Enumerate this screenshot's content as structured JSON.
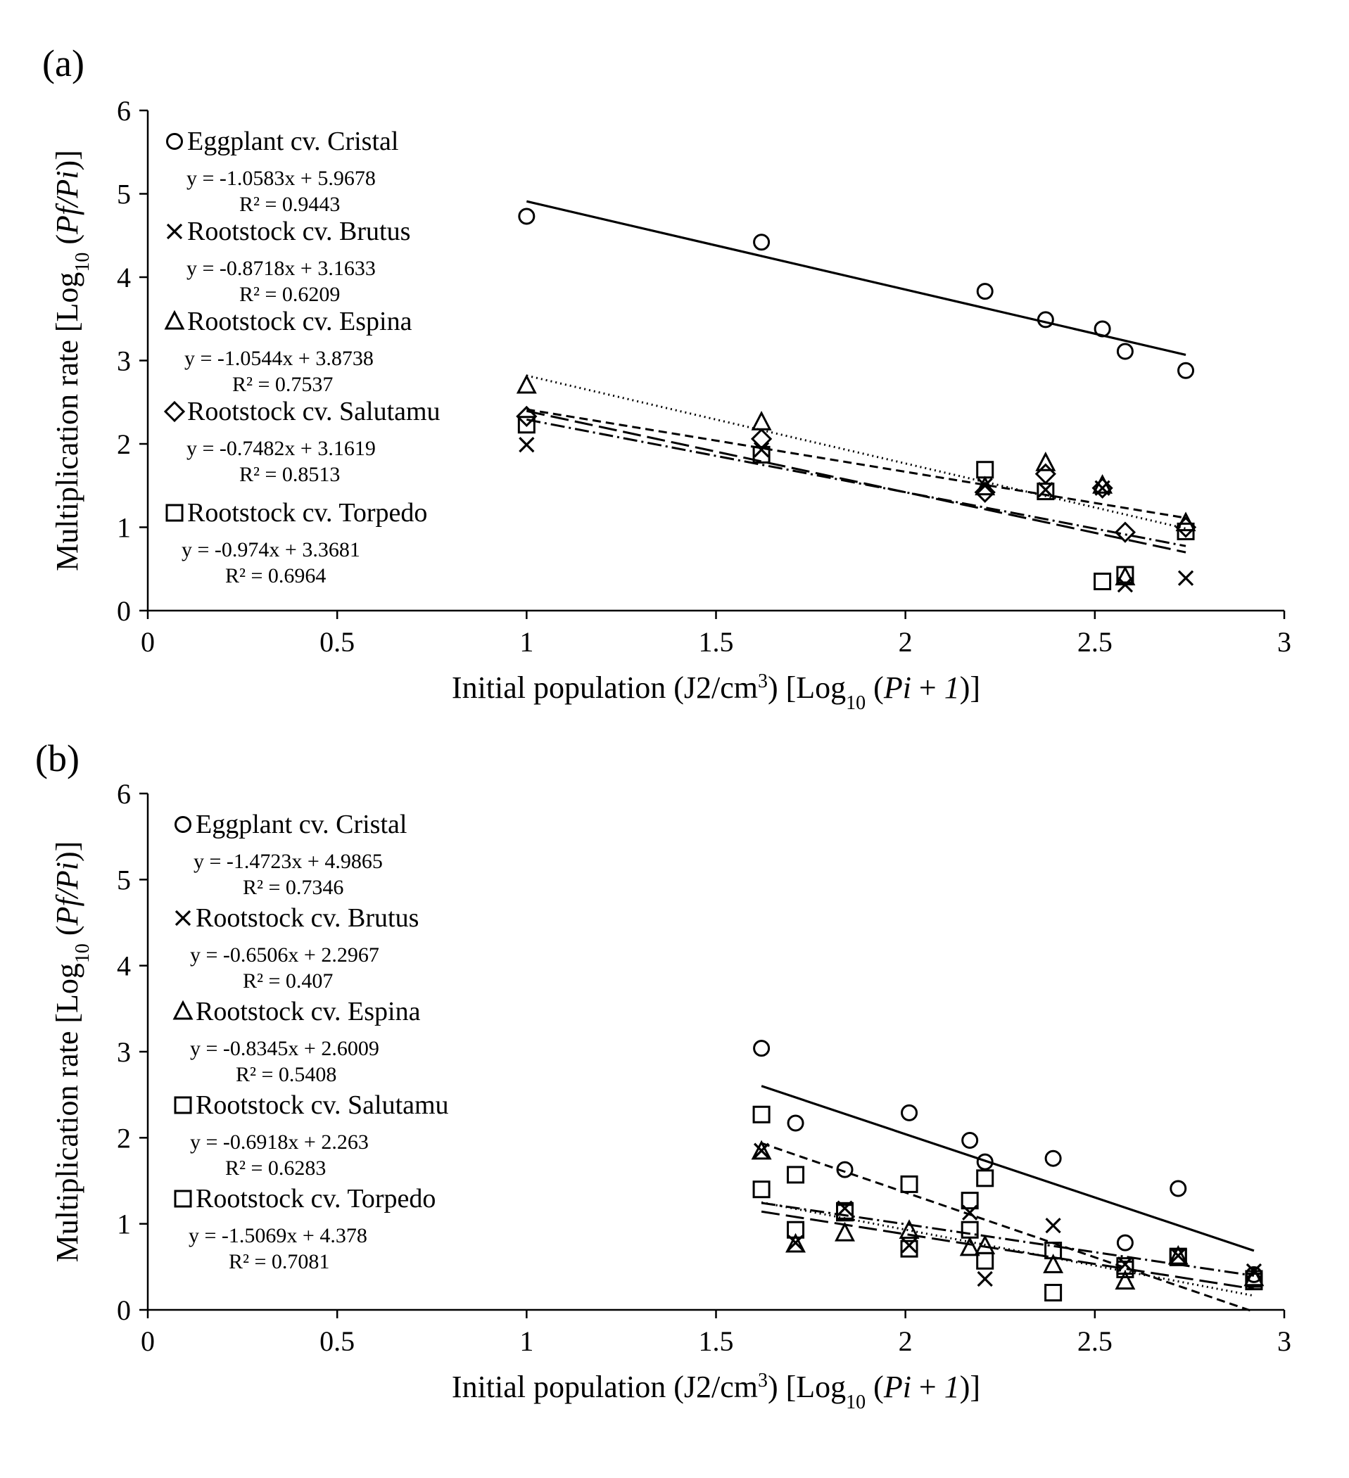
{
  "chart_data": [
    {
      "panel_label": "(a)",
      "type": "scatter",
      "xlabel": "Initial population (J2/cm³) [Log₁₀ (Pi + 1)]",
      "ylabel": "Multiplication rate [Log₁₀ (Pf/Pi)]",
      "xlim": [
        0,
        3
      ],
      "ylim": [
        0,
        6
      ],
      "x_ticks": [
        "0",
        "0.5",
        "1",
        "1.5",
        "2",
        "2.5",
        "3"
      ],
      "y_ticks": [
        "0",
        "1",
        "2",
        "3",
        "4",
        "5",
        "6"
      ],
      "grid": false,
      "legend_position": "top-left",
      "series": [
        {
          "name": "Eggplant cv. Cristal",
          "marker": "circle",
          "line_style": "solid",
          "equation": "y = -1.0583x + 5.9678",
          "r2": "R² = 0.9443",
          "slope": -1.0583,
          "intercept": 5.9678,
          "fit_range": [
            1.0,
            2.74
          ],
          "points": [
            [
              1.0,
              4.73
            ],
            [
              1.62,
              4.42
            ],
            [
              2.21,
              3.83
            ],
            [
              2.37,
              3.49
            ],
            [
              2.52,
              3.38
            ],
            [
              2.58,
              3.11
            ],
            [
              2.74,
              2.88
            ]
          ]
        },
        {
          "name": "Rootstock cv. Brutus",
          "marker": "x",
          "line_style": "dash-dot",
          "equation": "y = -0.8718x + 3.1633",
          "r2": "R² = 0.6209",
          "slope": -0.8718,
          "intercept": 3.1633,
          "fit_range": [
            1.0,
            2.74
          ],
          "points": [
            [
              1.0,
              1.99
            ],
            [
              1.62,
              1.93
            ],
            [
              2.21,
              1.5
            ],
            [
              2.37,
              1.45
            ],
            [
              2.52,
              1.47
            ],
            [
              2.58,
              0.31
            ],
            [
              2.74,
              0.39
            ]
          ]
        },
        {
          "name": "Rootstock cv. Espina",
          "marker": "triangle",
          "line_style": "dotted",
          "equation": "y = -1.0544x + 3.8738",
          "r2": "R² = 0.7537",
          "slope": -1.0544,
          "intercept": 3.8738,
          "fit_range": [
            1.0,
            2.74
          ],
          "points": [
            [
              1.0,
              2.7
            ],
            [
              1.62,
              2.26
            ],
            [
              2.21,
              1.48
            ],
            [
              2.37,
              1.77
            ],
            [
              2.52,
              1.5
            ],
            [
              2.58,
              0.4
            ],
            [
              2.74,
              1.05
            ]
          ]
        },
        {
          "name": "Rootstock cv. Salutamu",
          "marker": "diamond",
          "line_style": "dashed",
          "equation": "y = -0.7482x + 3.1619",
          "r2": "R² = 0.8513",
          "slope": -0.7482,
          "intercept": 3.1619,
          "fit_range": [
            1.0,
            2.74
          ],
          "points": [
            [
              1.0,
              2.33
            ],
            [
              1.62,
              2.06
            ],
            [
              2.21,
              1.42
            ],
            [
              2.37,
              1.64
            ],
            [
              2.52,
              1.47
            ],
            [
              2.58,
              0.94
            ],
            [
              2.74,
              1.0
            ]
          ]
        },
        {
          "name": "Rootstock cv. Torpedo",
          "marker": "square",
          "line_style": "long-dash",
          "equation": "y = -0.974x + 3.3681",
          "r2": "R² = 0.6964",
          "slope": -0.974,
          "intercept": 3.3681,
          "fit_range": [
            1.0,
            2.74
          ],
          "points": [
            [
              1.0,
              2.23
            ],
            [
              1.62,
              1.87
            ],
            [
              2.21,
              1.69
            ],
            [
              2.37,
              1.43
            ],
            [
              2.52,
              0.35
            ],
            [
              2.58,
              0.43
            ],
            [
              2.74,
              0.95
            ]
          ]
        }
      ]
    },
    {
      "panel_label": "(b)",
      "type": "scatter",
      "xlabel": "Initial population (J2/cm³) [Log₁₀ (Pi + 1)]",
      "ylabel": "Multiplication rate [Log₁₀ (Pf/Pi)]",
      "xlim": [
        0,
        3
      ],
      "ylim": [
        0,
        6
      ],
      "x_ticks": [
        "0",
        "0.5",
        "1",
        "1.5",
        "2",
        "2.5",
        "3"
      ],
      "y_ticks": [
        "0",
        "1",
        "2",
        "3",
        "4",
        "5",
        "6"
      ],
      "grid": false,
      "legend_position": "top-left",
      "series": [
        {
          "name": "Eggplant cv. Cristal",
          "marker": "circle",
          "line_style": "solid",
          "equation": "y = -1.4723x + 4.9865",
          "r2": "R² = 0.7346",
          "slope": -1.4723,
          "intercept": 4.9865,
          "fit_range": [
            1.62,
            2.92
          ],
          "points": [
            [
              1.62,
              3.04
            ],
            [
              1.71,
              2.17
            ],
            [
              1.84,
              1.63
            ],
            [
              2.01,
              2.29
            ],
            [
              2.17,
              1.97
            ],
            [
              2.21,
              1.72
            ],
            [
              2.39,
              1.76
            ],
            [
              2.58,
              0.78
            ],
            [
              2.72,
              1.41
            ],
            [
              2.92,
              0.41
            ]
          ]
        },
        {
          "name": "Rootstock cv. Brutus",
          "marker": "x",
          "line_style": "dash-dot",
          "equation": "y = -0.6506x + 2.2967",
          "r2": "R² = 0.407",
          "slope": -0.6506,
          "intercept": 2.2967,
          "fit_range": [
            1.62,
            2.92
          ],
          "points": [
            [
              1.62,
              1.85
            ],
            [
              1.71,
              0.78
            ],
            [
              1.84,
              1.18
            ],
            [
              2.01,
              0.75
            ],
            [
              2.17,
              1.13
            ],
            [
              2.21,
              0.36
            ],
            [
              2.39,
              0.98
            ],
            [
              2.58,
              0.53
            ],
            [
              2.72,
              0.63
            ],
            [
              2.92,
              0.45
            ]
          ]
        },
        {
          "name": "Rootstock cv. Espina",
          "marker": "triangle",
          "line_style": "dotted",
          "equation": "y = -0.8345x + 2.6009",
          "r2": "R² = 0.5408",
          "slope": -0.8345,
          "intercept": 2.6009,
          "fit_range": [
            1.62,
            2.92
          ],
          "points": [
            [
              1.62,
              1.84
            ],
            [
              1.71,
              0.76
            ],
            [
              1.84,
              0.89
            ],
            [
              2.01,
              0.92
            ],
            [
              2.17,
              0.72
            ],
            [
              2.21,
              0.74
            ],
            [
              2.39,
              0.52
            ],
            [
              2.58,
              0.33
            ],
            [
              2.72,
              0.62
            ],
            [
              2.92,
              0.37
            ]
          ]
        },
        {
          "name": "Rootstock cv. Salutamu",
          "marker": "square",
          "line_style": "long-dash",
          "equation": "y = -0.6918x + 2.263",
          "r2": "R² = 0.6283",
          "slope": -0.6918,
          "intercept": 2.263,
          "fit_range": [
            1.62,
            2.92
          ],
          "points": [
            [
              1.62,
              1.4
            ],
            [
              1.71,
              0.93
            ],
            [
              1.84,
              1.13
            ],
            [
              2.01,
              0.71
            ],
            [
              2.17,
              0.93
            ],
            [
              2.21,
              0.57
            ],
            [
              2.39,
              0.69
            ],
            [
              2.58,
              0.51
            ],
            [
              2.72,
              0.62
            ],
            [
              2.92,
              0.33
            ]
          ]
        },
        {
          "name": "Rootstock cv. Torpedo",
          "marker": "square",
          "line_style": "dashed",
          "equation": "y = -1.5069x + 4.378",
          "r2": "R² = 0.7081",
          "slope": -1.5069,
          "intercept": 4.378,
          "fit_range": [
            1.62,
            2.92
          ],
          "points": [
            [
              1.62,
              2.27
            ],
            [
              1.71,
              1.57
            ],
            [
              1.84,
              1.15
            ],
            [
              2.01,
              1.46
            ],
            [
              2.17,
              1.27
            ],
            [
              2.21,
              1.53
            ],
            [
              2.39,
              0.2
            ],
            [
              2.58,
              0.47
            ],
            [
              2.72,
              0.61
            ],
            [
              2.92,
              0.36
            ]
          ]
        }
      ]
    }
  ]
}
